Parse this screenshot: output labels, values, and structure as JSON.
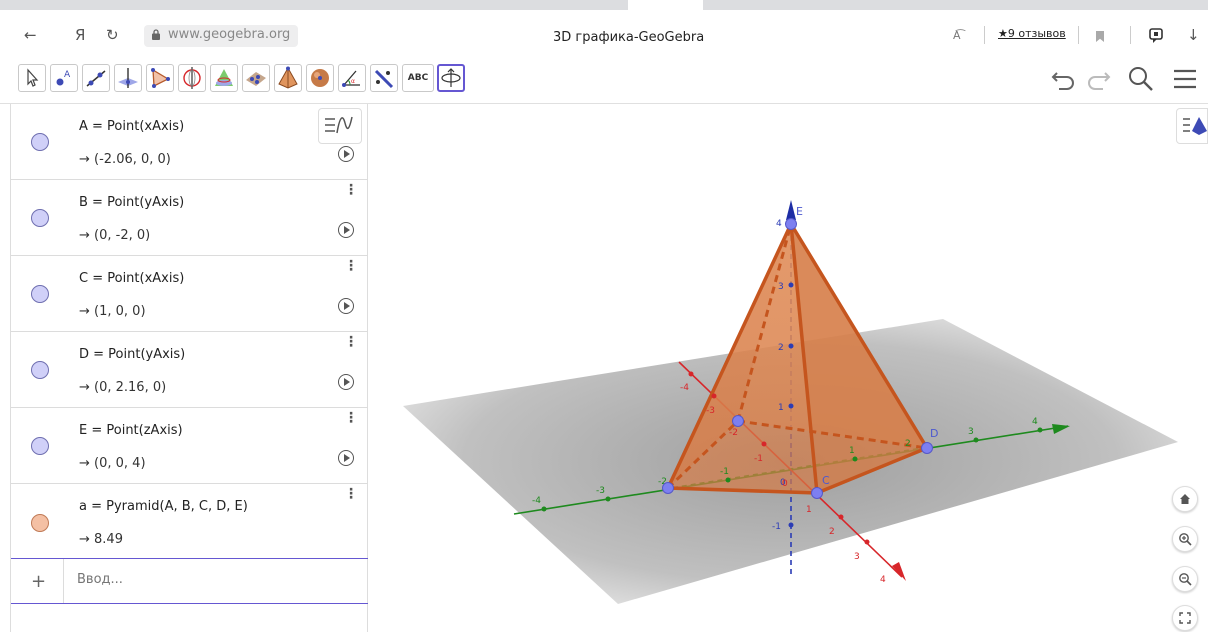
{
  "browser": {
    "back": "←",
    "logo": "Я",
    "reload": "↻",
    "url": "www.geogebra.org",
    "title": "3D графика-GeoGebra",
    "translate": "A͡",
    "reviews": "★9 отзывов",
    "download": "↓"
  },
  "toolbar": {
    "tools": [
      "move-tool-icon",
      "point-tool-icon",
      "line-tool-icon",
      "perpendicular-plane-tool-icon",
      "polygon-tool-icon",
      "circle-axis-tool-icon",
      "intersect-surfaces-tool-icon",
      "plane-three-points-tool-icon",
      "pyramid-tool-icon",
      "sphere-tool-icon",
      "angle-tool-icon",
      "reflect-tool-icon",
      "text-tool-icon",
      "rotate-view-tool-icon"
    ],
    "text_tool_label": "ABC",
    "active_tool": "rotate-view-tool-icon"
  },
  "algebra": {
    "rows": [
      {
        "def": "A = Point(xAxis)",
        "value": "→  (-2.06, 0, 0)",
        "color": "#d0d0f8"
      },
      {
        "def": "B = Point(yAxis)",
        "value": "→  (0, -2, 0)",
        "color": "#d0d0f8"
      },
      {
        "def": "C = Point(xAxis)",
        "value": "→  (1, 0, 0)",
        "color": "#d0d0f8"
      },
      {
        "def": "D = Point(yAxis)",
        "value": "→  (0, 2.16, 0)",
        "color": "#d0d0f8"
      },
      {
        "def": "E = Point(zAxis)",
        "value": "→  (0, 0, 4)",
        "color": "#d0d0f8"
      },
      {
        "def": "a = Pyramid(A, B, C, D, E)",
        "value": "→  8.49",
        "color": "#f4c0a4"
      }
    ],
    "input_placeholder": "Ввод...",
    "plus": "+"
  },
  "view3d": {
    "point_labels": {
      "E": "E",
      "D": "D",
      "C": "C"
    },
    "x_ticks": [
      "-4",
      "-3",
      "-2",
      "-1",
      "0",
      "1",
      "2",
      "3",
      "4"
    ],
    "y_ticks": [
      "-4",
      "-3",
      "-2",
      "-1",
      "0",
      "1",
      "2",
      "3",
      "4"
    ],
    "z_ticks": [
      "-1",
      "0",
      "1",
      "2",
      "3",
      "4"
    ],
    "pyramid_color": "#d9804c",
    "x_axis_color": "#d7262a",
    "y_axis_color": "#1e8a1e",
    "z_axis_color": "#2b3cb5"
  }
}
